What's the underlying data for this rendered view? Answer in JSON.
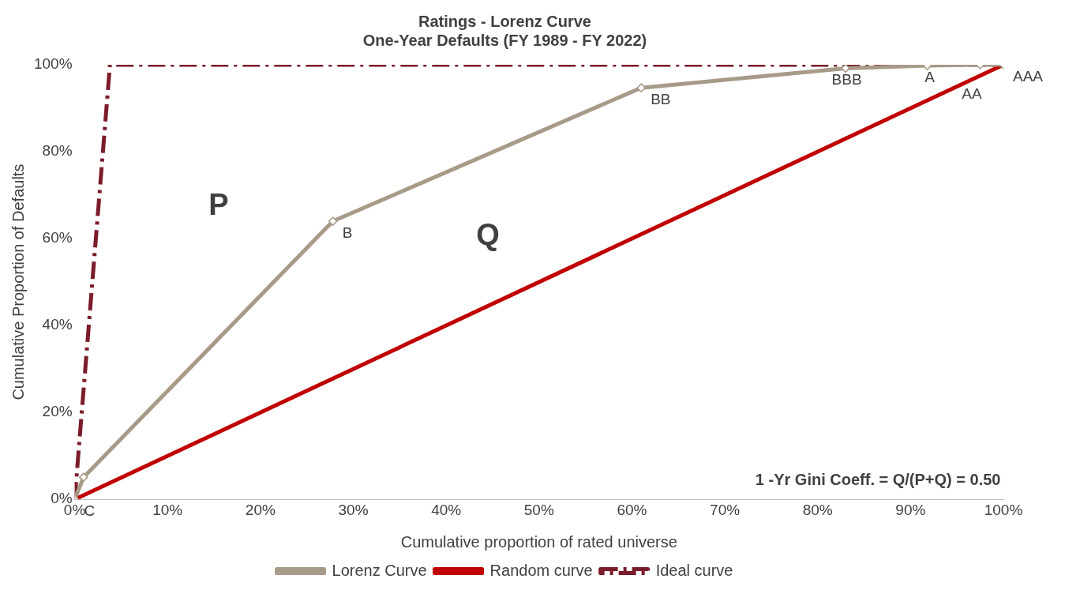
{
  "chart_data": {
    "type": "line",
    "title": "Ratings - Lorenz Curve",
    "subtitle": "One-Year Defaults (FY 1989 - FY 2022)",
    "xlabel": "Cumulative proportion of rated universe",
    "ylabel": "Cumulative Proportion of Defaults",
    "series": [
      {
        "name": "Lorenz Curve",
        "color": "#a89a88",
        "marker": "diamond",
        "line_style": "solid",
        "x": [
          0,
          0.96,
          27.8,
          61.0,
          83.0,
          91.8,
          97.5,
          100
        ],
        "values": [
          0,
          5.1,
          64.0,
          94.7,
          99.2,
          99.8,
          100,
          100
        ]
      },
      {
        "name": "Random curve",
        "color": "#c00000",
        "marker": "none",
        "line_style": "solid",
        "x": [
          0,
          100
        ],
        "values": [
          0,
          100
        ]
      },
      {
        "name": "Ideal curve",
        "color": "#7b1c2a",
        "marker": "none",
        "line_style": "dashed",
        "x": [
          0,
          3.8,
          100
        ],
        "values": [
          0,
          100,
          100
        ]
      }
    ],
    "xlim": [
      0,
      100
    ],
    "ylim": [
      0,
      100
    ],
    "xticks": [
      {
        "value": 0,
        "label": "0%"
      },
      {
        "value": 10,
        "label": "10%"
      },
      {
        "value": 20,
        "label": "20%"
      },
      {
        "value": 30,
        "label": "30%"
      },
      {
        "value": 40,
        "label": "40%"
      },
      {
        "value": 50,
        "label": "50%"
      },
      {
        "value": 60,
        "label": "60%"
      },
      {
        "value": 70,
        "label": "70%"
      },
      {
        "value": 80,
        "label": "80%"
      },
      {
        "value": 90,
        "label": "90%"
      },
      {
        "value": 100,
        "label": "100%"
      }
    ],
    "yticks": [
      {
        "value": 0,
        "label": "0%"
      },
      {
        "value": 20,
        "label": "20%"
      },
      {
        "value": 40,
        "label": "40%"
      },
      {
        "value": 60,
        "label": "60%"
      },
      {
        "value": 80,
        "label": "80%"
      },
      {
        "value": 100,
        "label": "100%"
      }
    ],
    "grid": false,
    "legend": "bottom",
    "annotations": [
      {
        "text": "C",
        "x": 0,
        "y": 0
      },
      {
        "text": "B",
        "x": 27.8,
        "y": 64.0
      },
      {
        "text": "BB",
        "x": 61.0,
        "y": 94.7
      },
      {
        "text": "BBB",
        "x": 80.5,
        "y": 99.2
      },
      {
        "text": "A",
        "x": 90.5,
        "y": 99.8
      },
      {
        "text": "AA",
        "x": 94.5,
        "y": 96
      },
      {
        "text": "AAA",
        "x": 100,
        "y": 100
      },
      "P",
      "Q",
      "1 -Yr Gini Coeff. = Q/(P+Q) = 0.50"
    ]
  }
}
